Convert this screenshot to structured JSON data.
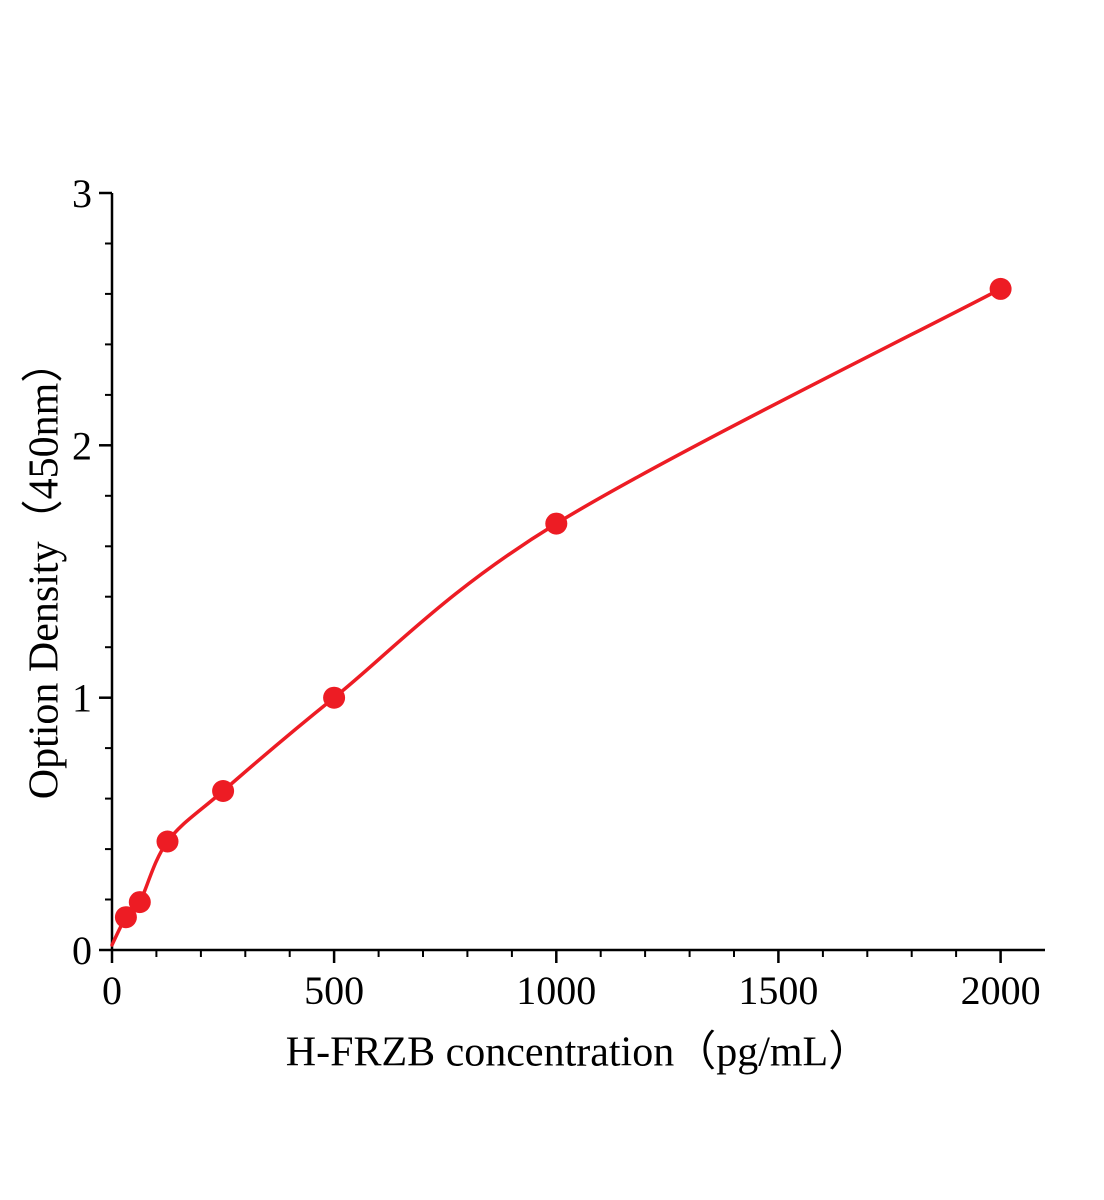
{
  "chart_data": {
    "type": "scatter",
    "title": "",
    "xlabel": "H-FRZB concentration（pg/mL）",
    "ylabel": "Option Density（450nm）",
    "x": [
      31.25,
      62.5,
      125,
      250,
      500,
      1000,
      2000
    ],
    "y": [
      0.13,
      0.19,
      0.43,
      0.63,
      1.0,
      1.69,
      2.62
    ],
    "curve_start": {
      "x": 0,
      "y": 0.02
    },
    "xlim": [
      0,
      2100
    ],
    "ylim": [
      0,
      3
    ],
    "x_ticks": [
      0,
      500,
      1000,
      1500,
      2000
    ],
    "y_ticks": [
      0,
      1,
      2,
      3
    ],
    "x_minor_step": 100,
    "y_minor_step": 0.2,
    "line_color": "#ed1c24",
    "marker_color": "#ed1c24",
    "axis_color": "#000000",
    "grid": false,
    "legend": "none"
  }
}
